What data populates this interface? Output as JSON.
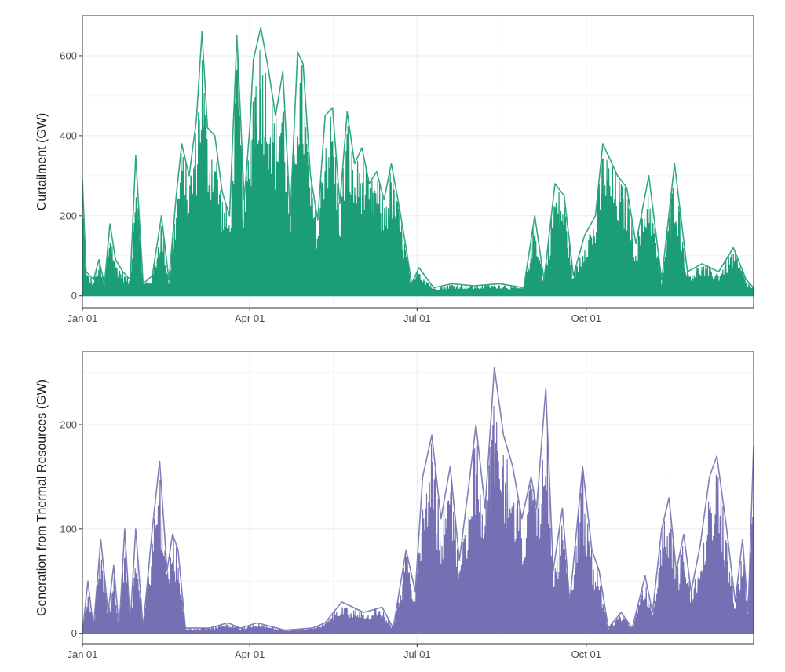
{
  "chart_data": [
    {
      "type": "area",
      "title": "",
      "xlabel": "",
      "ylabel": "Curtailment (GW)",
      "xlim": [
        "2020-01-01",
        "2020-12-31"
      ],
      "ylim": [
        -30,
        700
      ],
      "yticks": [
        0,
        200,
        400,
        600
      ],
      "xticks": [
        {
          "date": "2020-01-01",
          "label": "Jan 01"
        },
        {
          "date": "2020-04-01",
          "label": "Apr 01"
        },
        {
          "date": "2020-07-01",
          "label": "Jul 01"
        },
        {
          "date": "2020-10-01",
          "label": "Oct 01"
        }
      ],
      "grid": true,
      "legend": "none",
      "series": [
        {
          "color": "#1b9e77",
          "points": [
            [
              "2020-01-01",
              290
            ],
            [
              "2020-01-03",
              60
            ],
            [
              "2020-01-07",
              40
            ],
            [
              "2020-01-10",
              90
            ],
            [
              "2020-01-13",
              30
            ],
            [
              "2020-01-16",
              180
            ],
            [
              "2020-01-19",
              90
            ],
            [
              "2020-01-23",
              60
            ],
            [
              "2020-01-27",
              40
            ],
            [
              "2020-01-30",
              350
            ],
            [
              "2020-02-03",
              30
            ],
            [
              "2020-02-08",
              50
            ],
            [
              "2020-02-13",
              200
            ],
            [
              "2020-02-17",
              40
            ],
            [
              "2020-02-21",
              250
            ],
            [
              "2020-02-24",
              380
            ],
            [
              "2020-02-28",
              300
            ],
            [
              "2020-03-03",
              440
            ],
            [
              "2020-03-06",
              660
            ],
            [
              "2020-03-09",
              420
            ],
            [
              "2020-03-13",
              400
            ],
            [
              "2020-03-17",
              260
            ],
            [
              "2020-03-21",
              200
            ],
            [
              "2020-03-25",
              650
            ],
            [
              "2020-03-29",
              240
            ],
            [
              "2020-04-01",
              420
            ],
            [
              "2020-04-03",
              590
            ],
            [
              "2020-04-07",
              670
            ],
            [
              "2020-04-11",
              570
            ],
            [
              "2020-04-15",
              450
            ],
            [
              "2020-04-19",
              560
            ],
            [
              "2020-04-23",
              200
            ],
            [
              "2020-04-27",
              610
            ],
            [
              "2020-04-30",
              580
            ],
            [
              "2020-05-04",
              300
            ],
            [
              "2020-05-08",
              190
            ],
            [
              "2020-05-12",
              450
            ],
            [
              "2020-05-16",
              470
            ],
            [
              "2020-05-20",
              230
            ],
            [
              "2020-05-24",
              460
            ],
            [
              "2020-05-28",
              330
            ],
            [
              "2020-06-01",
              370
            ],
            [
              "2020-06-05",
              280
            ],
            [
              "2020-06-09",
              310
            ],
            [
              "2020-06-13",
              240
            ],
            [
              "2020-06-17",
              330
            ],
            [
              "2020-06-21",
              230
            ],
            [
              "2020-06-25",
              120
            ],
            [
              "2020-06-28",
              30
            ],
            [
              "2020-07-02",
              70
            ],
            [
              "2020-07-10",
              20
            ],
            [
              "2020-07-20",
              30
            ],
            [
              "2020-08-01",
              25
            ],
            [
              "2020-08-15",
              30
            ],
            [
              "2020-08-28",
              20
            ],
            [
              "2020-09-03",
              200
            ],
            [
              "2020-09-08",
              40
            ],
            [
              "2020-09-14",
              280
            ],
            [
              "2020-09-19",
              250
            ],
            [
              "2020-09-24",
              50
            ],
            [
              "2020-09-30",
              150
            ],
            [
              "2020-10-06",
              200
            ],
            [
              "2020-10-10",
              380
            ],
            [
              "2020-10-14",
              340
            ],
            [
              "2020-10-18",
              300
            ],
            [
              "2020-10-23",
              270
            ],
            [
              "2020-10-28",
              130
            ],
            [
              "2020-11-04",
              300
            ],
            [
              "2020-11-11",
              40
            ],
            [
              "2020-11-18",
              330
            ],
            [
              "2020-11-25",
              60
            ],
            [
              "2020-12-03",
              80
            ],
            [
              "2020-12-12",
              60
            ],
            [
              "2020-12-20",
              120
            ],
            [
              "2020-12-27",
              40
            ],
            [
              "2020-12-31",
              20
            ]
          ]
        }
      ]
    },
    {
      "type": "area",
      "title": "",
      "xlabel": "",
      "ylabel": "Generation from Thermal Resources (GW)",
      "xlim": [
        "2020-01-01",
        "2020-12-31"
      ],
      "ylim": [
        -10,
        270
      ],
      "yticks": [
        0,
        100,
        200
      ],
      "xticks": [
        {
          "date": "2020-01-01",
          "label": "Jan 01"
        },
        {
          "date": "2020-04-01",
          "label": "Apr 01"
        },
        {
          "date": "2020-07-01",
          "label": "Jul 01"
        },
        {
          "date": "2020-10-01",
          "label": "Oct 01"
        }
      ],
      "grid": true,
      "legend": "none",
      "series": [
        {
          "color": "#7570b3",
          "points": [
            [
              "2020-01-01",
              0
            ],
            [
              "2020-01-04",
              50
            ],
            [
              "2020-01-07",
              5
            ],
            [
              "2020-01-11",
              90
            ],
            [
              "2020-01-15",
              20
            ],
            [
              "2020-01-18",
              65
            ],
            [
              "2020-01-21",
              5
            ],
            [
              "2020-01-24",
              100
            ],
            [
              "2020-01-27",
              10
            ],
            [
              "2020-01-30",
              100
            ],
            [
              "2020-02-03",
              5
            ],
            [
              "2020-02-08",
              100
            ],
            [
              "2020-02-12",
              165
            ],
            [
              "2020-02-16",
              60
            ],
            [
              "2020-02-19",
              95
            ],
            [
              "2020-02-22",
              80
            ],
            [
              "2020-02-26",
              5
            ],
            [
              "2020-03-10",
              5
            ],
            [
              "2020-03-20",
              10
            ],
            [
              "2020-03-27",
              5
            ],
            [
              "2020-04-05",
              10
            ],
            [
              "2020-04-20",
              3
            ],
            [
              "2020-05-05",
              5
            ],
            [
              "2020-05-12",
              10
            ],
            [
              "2020-05-21",
              30
            ],
            [
              "2020-06-02",
              20
            ],
            [
              "2020-06-12",
              25
            ],
            [
              "2020-06-18",
              5
            ],
            [
              "2020-06-25",
              80
            ],
            [
              "2020-06-30",
              40
            ],
            [
              "2020-07-04",
              150
            ],
            [
              "2020-07-09",
              190
            ],
            [
              "2020-07-14",
              110
            ],
            [
              "2020-07-19",
              160
            ],
            [
              "2020-07-24",
              70
            ],
            [
              "2020-07-29",
              140
            ],
            [
              "2020-08-02",
              200
            ],
            [
              "2020-08-07",
              120
            ],
            [
              "2020-08-12",
              255
            ],
            [
              "2020-08-17",
              190
            ],
            [
              "2020-08-22",
              160
            ],
            [
              "2020-08-27",
              110
            ],
            [
              "2020-09-01",
              150
            ],
            [
              "2020-09-04",
              120
            ],
            [
              "2020-09-09",
              235
            ],
            [
              "2020-09-13",
              60
            ],
            [
              "2020-09-18",
              120
            ],
            [
              "2020-09-22",
              30
            ],
            [
              "2020-09-29",
              160
            ],
            [
              "2020-10-04",
              80
            ],
            [
              "2020-10-08",
              60
            ],
            [
              "2020-10-13",
              5
            ],
            [
              "2020-10-20",
              20
            ],
            [
              "2020-10-26",
              5
            ],
            [
              "2020-11-02",
              55
            ],
            [
              "2020-11-06",
              20
            ],
            [
              "2020-11-11",
              100
            ],
            [
              "2020-11-15",
              130
            ],
            [
              "2020-11-19",
              60
            ],
            [
              "2020-11-23",
              95
            ],
            [
              "2020-11-27",
              40
            ],
            [
              "2020-12-02",
              85
            ],
            [
              "2020-12-07",
              150
            ],
            [
              "2020-12-11",
              170
            ],
            [
              "2020-12-16",
              105
            ],
            [
              "2020-12-21",
              30
            ],
            [
              "2020-12-25",
              90
            ],
            [
              "2020-12-28",
              20
            ],
            [
              "2020-12-31",
              180
            ]
          ]
        }
      ]
    }
  ]
}
